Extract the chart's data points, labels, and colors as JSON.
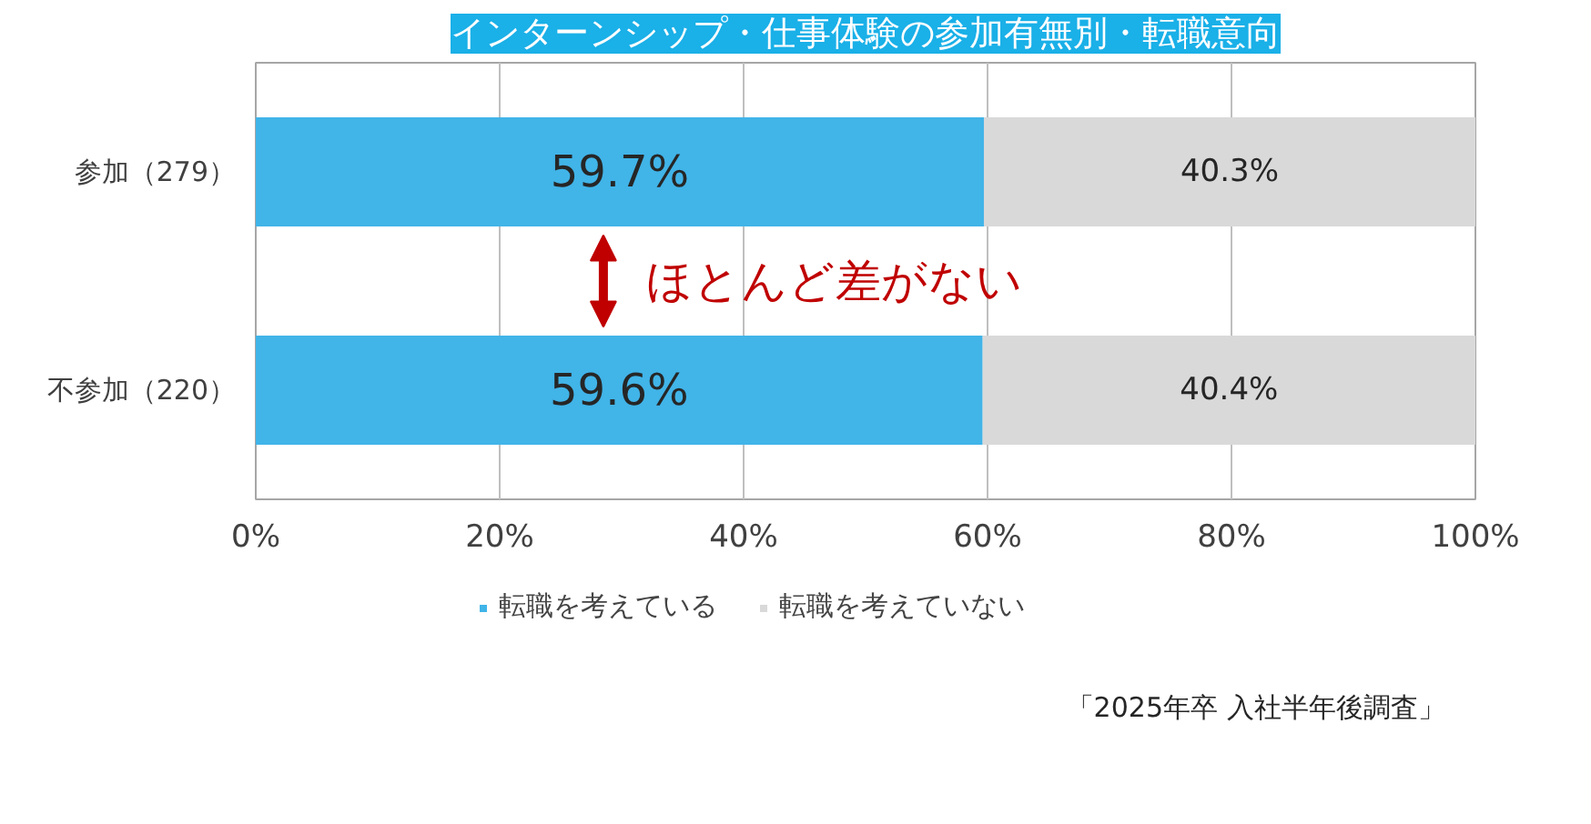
{
  "chart_data": {
    "type": "bar",
    "orientation": "horizontal",
    "stacked": true,
    "title": "インターンシップ・仕事体験の参加有無別・転職意向",
    "categories": [
      "参加（279）",
      "不参加（220）"
    ],
    "series": [
      {
        "name": "転職を考えている",
        "color": "#41b4e8",
        "values": [
          59.7,
          59.6
        ],
        "value_labels": [
          "59.7%",
          "59.6%"
        ]
      },
      {
        "name": "転職を考えていない",
        "color": "#d9d9d9",
        "values": [
          40.3,
          40.4
        ],
        "value_labels": [
          "40.3%",
          "40.4%"
        ]
      }
    ],
    "xlim": [
      0,
      100
    ],
    "xticks": [
      {
        "value": 0,
        "label": "0%"
      },
      {
        "value": 20,
        "label": "20%"
      },
      {
        "value": 40,
        "label": "40%"
      },
      {
        "value": 60,
        "label": "60%"
      },
      {
        "value": 80,
        "label": "80%"
      },
      {
        "value": 100,
        "label": "100%"
      }
    ],
    "grid": "x",
    "legend": "bottom",
    "annotations": [
      "ほとんど差がない",
      "「2025年卒 入社半年後調査」"
    ]
  }
}
